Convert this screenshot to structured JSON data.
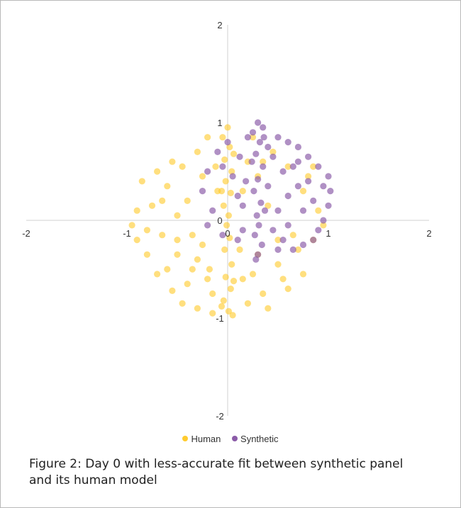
{
  "chart_data": {
    "type": "scatter",
    "title": "",
    "xlabel": "",
    "ylabel": "",
    "xlim": [
      -2,
      2
    ],
    "ylim": [
      -2,
      2
    ],
    "grid": false,
    "legend_position": "bottom-center",
    "x_ticks": [
      "-2",
      "-1",
      "0",
      "1",
      "2"
    ],
    "y_ticks": [
      "2",
      "1",
      "0",
      "-1",
      "-2"
    ],
    "series": [
      {
        "name": "Human",
        "color": "#ffcb2e",
        "distribution": "roughly uniform disk centered near (0, 0), radius about 1, with a dense vertical band along x = 0",
        "points": [
          [
            0.0,
            0.95
          ],
          [
            -0.05,
            0.85
          ],
          [
            0.02,
            0.75
          ],
          [
            -0.03,
            0.62
          ],
          [
            0.04,
            0.5
          ],
          [
            -0.02,
            0.4
          ],
          [
            0.03,
            0.28
          ],
          [
            -0.04,
            0.15
          ],
          [
            0.01,
            0.05
          ],
          [
            -0.01,
            -0.05
          ],
          [
            0.02,
            -0.18
          ],
          [
            -0.03,
            -0.3
          ],
          [
            0.04,
            -0.45
          ],
          [
            -0.02,
            -0.58
          ],
          [
            0.03,
            -0.7
          ],
          [
            -0.04,
            -0.82
          ],
          [
            0.01,
            -0.93
          ],
          [
            0.05,
            -0.97
          ],
          [
            -0.06,
            -0.88
          ],
          [
            0.06,
            -0.62
          ],
          [
            -0.06,
            0.3
          ],
          [
            0.06,
            0.68
          ],
          [
            -0.85,
            0.4
          ],
          [
            -0.9,
            0.1
          ],
          [
            -0.95,
            -0.05
          ],
          [
            -0.9,
            -0.2
          ],
          [
            -0.8,
            -0.35
          ],
          [
            -0.7,
            -0.55
          ],
          [
            -0.55,
            -0.72
          ],
          [
            -0.45,
            -0.85
          ],
          [
            -0.3,
            -0.9
          ],
          [
            -0.15,
            -0.95
          ],
          [
            -0.2,
            -0.6
          ],
          [
            -0.35,
            -0.5
          ],
          [
            -0.5,
            -0.35
          ],
          [
            -0.65,
            -0.15
          ],
          [
            -0.75,
            0.15
          ],
          [
            -0.6,
            0.35
          ],
          [
            -0.45,
            0.55
          ],
          [
            -0.3,
            0.7
          ],
          [
            -0.2,
            0.85
          ],
          [
            -0.55,
            0.6
          ],
          [
            -0.7,
            0.5
          ],
          [
            -0.4,
            0.2
          ],
          [
            -0.5,
            0.05
          ],
          [
            -0.25,
            -0.25
          ],
          [
            -0.35,
            -0.15
          ],
          [
            -0.6,
            -0.5
          ],
          [
            -0.15,
            -0.75
          ],
          [
            -0.4,
            -0.65
          ],
          [
            -0.1,
            0.3
          ],
          [
            -0.25,
            0.45
          ],
          [
            -0.8,
            -0.1
          ],
          [
            -0.65,
            0.2
          ],
          [
            -0.3,
            -0.4
          ],
          [
            -0.18,
            -0.5
          ],
          [
            -0.12,
            0.55
          ],
          [
            -0.5,
            -0.2
          ],
          [
            0.3,
            -0.35
          ],
          [
            0.5,
            -0.45
          ],
          [
            0.7,
            -0.3
          ],
          [
            0.85,
            -0.2
          ],
          [
            0.9,
            0.1
          ],
          [
            0.75,
            0.3
          ],
          [
            0.6,
            0.55
          ],
          [
            0.45,
            0.7
          ],
          [
            0.25,
            0.85
          ],
          [
            0.15,
            -0.6
          ],
          [
            0.2,
            -0.85
          ],
          [
            0.35,
            -0.75
          ],
          [
            0.55,
            -0.6
          ],
          [
            0.65,
            -0.15
          ],
          [
            0.4,
            0.15
          ],
          [
            0.3,
            0.45
          ],
          [
            0.15,
            0.3
          ],
          [
            0.95,
            -0.05
          ],
          [
            0.8,
            0.45
          ],
          [
            0.5,
            -0.2
          ],
          [
            0.25,
            -0.55
          ],
          [
            0.4,
            -0.9
          ],
          [
            0.6,
            -0.7
          ],
          [
            0.75,
            -0.55
          ],
          [
            0.85,
            0.55
          ],
          [
            0.35,
            0.6
          ],
          [
            0.2,
            0.6
          ],
          [
            0.12,
            -0.3
          ]
        ]
      },
      {
        "name": "Synthetic",
        "color": "#8b5ba8",
        "distribution": "cluster centered near (0.4, 0.25), spanning x about -0.25 to 1.05 and y about -0.4 to 1.0, with a dense vertical band along x = 0.3",
        "points": [
          [
            0.3,
            1.0
          ],
          [
            0.35,
            0.95
          ],
          [
            0.25,
            0.9
          ],
          [
            0.32,
            0.8
          ],
          [
            0.28,
            0.68
          ],
          [
            0.35,
            0.55
          ],
          [
            0.3,
            0.42
          ],
          [
            0.26,
            0.3
          ],
          [
            0.33,
            0.18
          ],
          [
            0.29,
            0.05
          ],
          [
            0.31,
            -0.05
          ],
          [
            0.27,
            -0.15
          ],
          [
            0.34,
            -0.25
          ],
          [
            0.3,
            -0.35
          ],
          [
            0.28,
            -0.4
          ],
          [
            0.36,
            0.85
          ],
          [
            0.24,
            0.6
          ],
          [
            0.37,
            0.1
          ],
          [
            0.0,
            0.8
          ],
          [
            -0.1,
            0.7
          ],
          [
            -0.2,
            0.5
          ],
          [
            -0.25,
            0.3
          ],
          [
            -0.15,
            0.1
          ],
          [
            -0.2,
            -0.05
          ],
          [
            -0.05,
            -0.15
          ],
          [
            0.1,
            -0.2
          ],
          [
            0.15,
            0.15
          ],
          [
            0.05,
            0.45
          ],
          [
            0.12,
            0.65
          ],
          [
            0.18,
            0.4
          ],
          [
            0.5,
            0.85
          ],
          [
            0.6,
            0.8
          ],
          [
            0.7,
            0.75
          ],
          [
            0.8,
            0.65
          ],
          [
            0.9,
            0.55
          ],
          [
            1.0,
            0.45
          ],
          [
            1.02,
            0.3
          ],
          [
            1.0,
            0.15
          ],
          [
            0.95,
            0.0
          ],
          [
            0.9,
            -0.1
          ],
          [
            0.85,
            -0.2
          ],
          [
            0.75,
            -0.25
          ],
          [
            0.65,
            -0.3
          ],
          [
            0.55,
            -0.2
          ],
          [
            0.45,
            -0.1
          ],
          [
            0.5,
            0.1
          ],
          [
            0.6,
            0.25
          ],
          [
            0.7,
            0.35
          ],
          [
            0.55,
            0.5
          ],
          [
            0.45,
            0.65
          ],
          [
            0.8,
            0.4
          ],
          [
            0.65,
            0.55
          ],
          [
            0.75,
            0.1
          ],
          [
            0.85,
            0.2
          ],
          [
            0.4,
            0.35
          ],
          [
            0.5,
            -0.3
          ],
          [
            0.6,
            -0.05
          ],
          [
            0.7,
            0.6
          ],
          [
            0.2,
            0.85
          ],
          [
            -0.05,
            0.55
          ],
          [
            0.1,
            0.25
          ],
          [
            0.95,
            0.35
          ],
          [
            0.4,
            0.75
          ],
          [
            0.15,
            -0.1
          ]
        ]
      }
    ]
  },
  "legend": {
    "items": [
      {
        "label": "Human",
        "color": "#ffcb2e"
      },
      {
        "label": "Synthetic",
        "color": "#8b5ba8"
      }
    ]
  },
  "caption": {
    "line1": "Figure 2: Day 0 with less-accurate fit between synthetic panel",
    "line2": "and its human model"
  }
}
